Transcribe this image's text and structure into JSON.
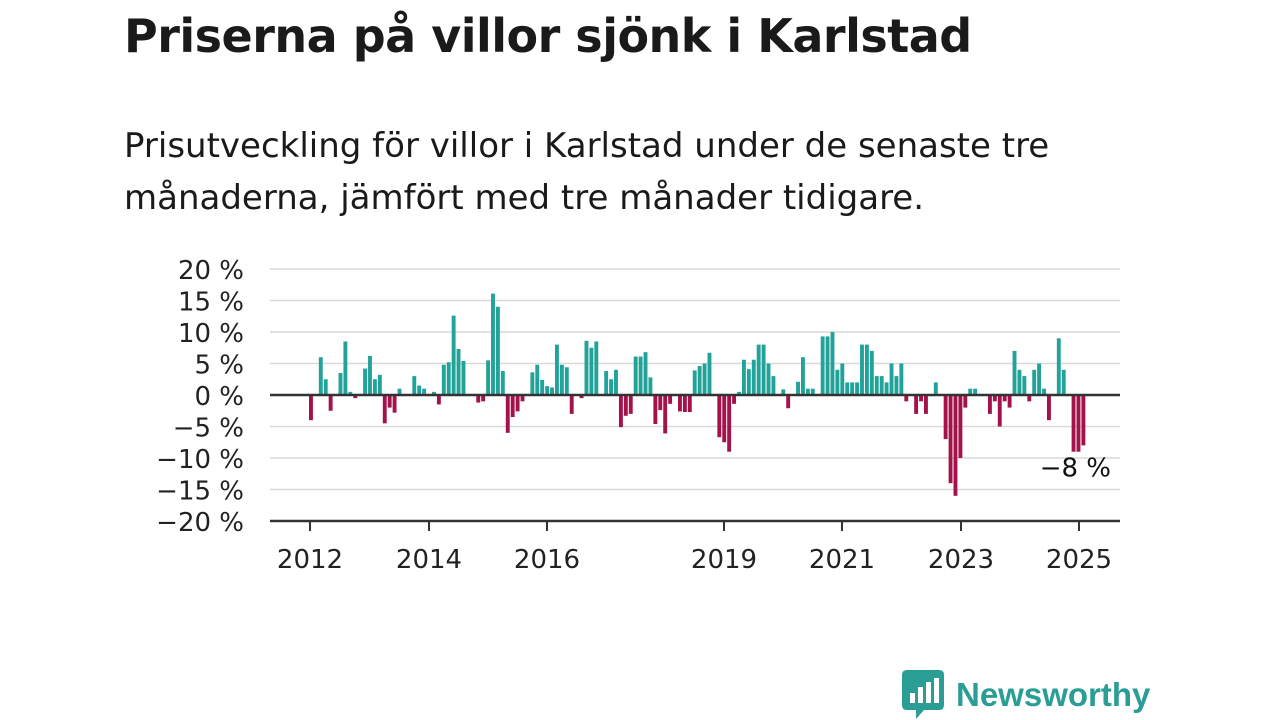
{
  "title": "Priserna på villor sjönk i Karlstad",
  "subtitle": "Prisutveckling för villor i Karlstad under de senaste tre månaderna, jämfört med tre månader tidigare.",
  "brand": "Newsworthy",
  "colors": {
    "positive": "#22a39a",
    "negative": "#a3124a",
    "brand": "#2a9d94",
    "grid": "#d9d9d9",
    "axis": "#333333"
  },
  "chart_data": {
    "type": "bar",
    "title": "",
    "xlabel": "",
    "ylabel": "",
    "ylim": [
      -20,
      20
    ],
    "yticks": [
      20,
      15,
      10,
      5,
      0,
      -5,
      -10,
      -15,
      -20
    ],
    "ytick_labels": [
      "20 %",
      "15 %",
      "10 %",
      "5 %",
      "0 %",
      "−5 %",
      "−10 %",
      "−15 %",
      "−20 %"
    ],
    "xticks": [
      2012,
      2014,
      2016,
      2019,
      2021,
      2023,
      2025
    ],
    "xtick_labels": [
      "2012",
      "2014",
      "2016",
      "2019",
      "2021",
      "2023",
      "2025"
    ],
    "grid": true,
    "last_value_label": "−8 %",
    "values": [
      -4,
      null,
      6,
      2.5,
      -2.5,
      null,
      3.5,
      8.5,
      0.5,
      -0.5,
      null,
      4.2,
      6.2,
      2.5,
      3.2,
      -4.5,
      -2,
      -2.8,
      1,
      null,
      null,
      3,
      1.5,
      1,
      null,
      0.5,
      -1.5,
      4.8,
      5.2,
      12.6,
      7.3,
      5.4,
      null,
      null,
      -1.2,
      -1,
      5.5,
      16.1,
      14,
      3.8,
      -6,
      -3.5,
      -2.6,
      -1,
      null,
      3.6,
      4.8,
      2.4,
      1.4,
      1.2,
      8,
      4.8,
      4.4,
      -3,
      null,
      -0.5,
      8.6,
      7.5,
      8.5,
      null,
      3.8,
      2.5,
      4,
      -5.1,
      -3.3,
      -3,
      6.1,
      6.1,
      6.8,
      2.8,
      -4.6,
      -2.4,
      -6.1,
      -1.4,
      null,
      -2.6,
      -2.7,
      -2.7,
      3.9,
      4.6,
      5,
      6.7,
      null,
      -6.7,
      -7.5,
      -9,
      -1.4,
      0.5,
      5.6,
      4.1,
      5.6,
      8,
      8,
      5,
      3,
      null,
      0.9,
      -2.1,
      null,
      2.1,
      6,
      1,
      1,
      null,
      9.3,
      9.3,
      10,
      4,
      5,
      2,
      2,
      2,
      8,
      8,
      7,
      3,
      3,
      2,
      5,
      3,
      5,
      -1,
      null,
      -3,
      -1,
      -3,
      null,
      2,
      null,
      -7,
      -14,
      -16,
      -10,
      -2,
      1,
      1,
      null,
      null,
      -3,
      -1,
      -5,
      -1,
      -2,
      7,
      4,
      3,
      -1,
      4,
      5,
      1,
      -4,
      null,
      9,
      4,
      null,
      -9,
      -9,
      -8
    ]
  }
}
